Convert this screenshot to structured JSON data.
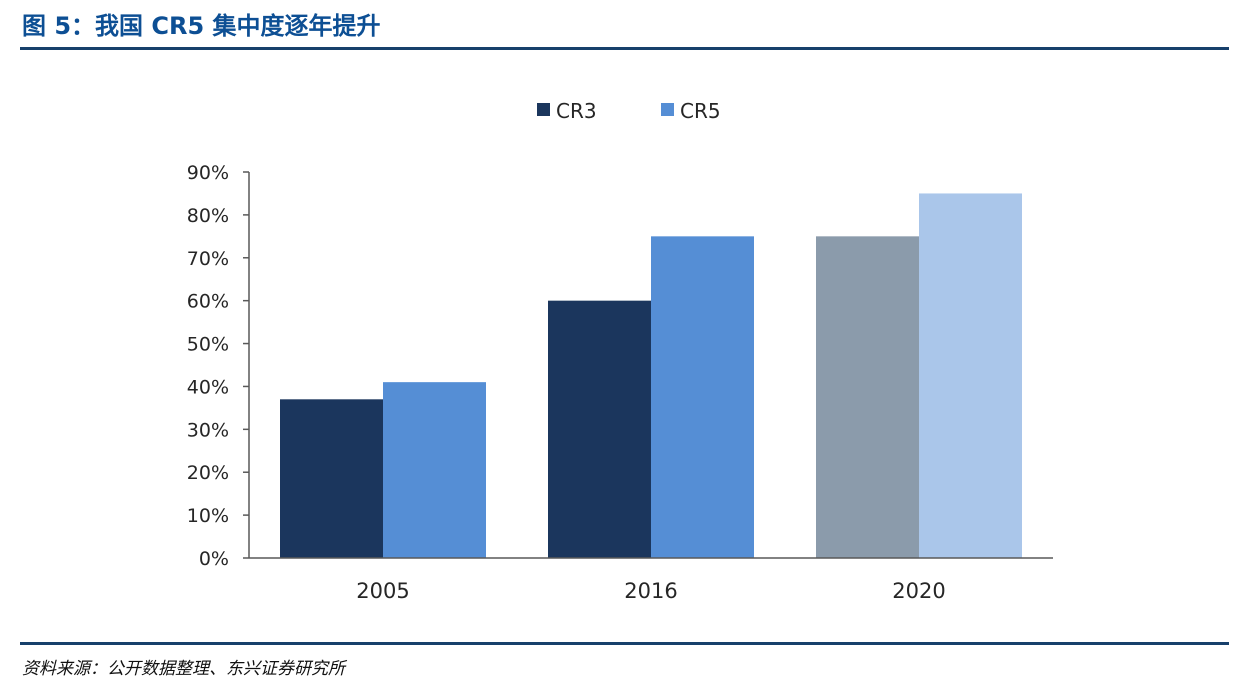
{
  "figure": {
    "title": "图 5：我国 CR5 集中度逐年提升",
    "source": "资料来源：公开数据整理、东兴证券研究所"
  },
  "colors": {
    "title": "#0d4f94",
    "rule": "#17406b",
    "axis": "#595959"
  },
  "chart_data": {
    "type": "bar",
    "categories": [
      "2005",
      "2016",
      "2020"
    ],
    "series": [
      {
        "name": "CR3",
        "values": [
          37,
          60,
          75
        ],
        "colors": [
          "#1b365d",
          "#1b365d",
          "#8b9bab"
        ],
        "legend_color": "#1b365d"
      },
      {
        "name": "CR5",
        "values": [
          41,
          75,
          85
        ],
        "colors": [
          "#558ed5",
          "#558ed5",
          "#aac6ea"
        ],
        "legend_color": "#558ed5"
      }
    ],
    "yticks": [
      "0%",
      "10%",
      "20%",
      "30%",
      "40%",
      "50%",
      "60%",
      "70%",
      "80%",
      "90%"
    ],
    "ylim": [
      0,
      90
    ],
    "y_unit": "%",
    "legend_position": "top-center",
    "grid": false
  }
}
